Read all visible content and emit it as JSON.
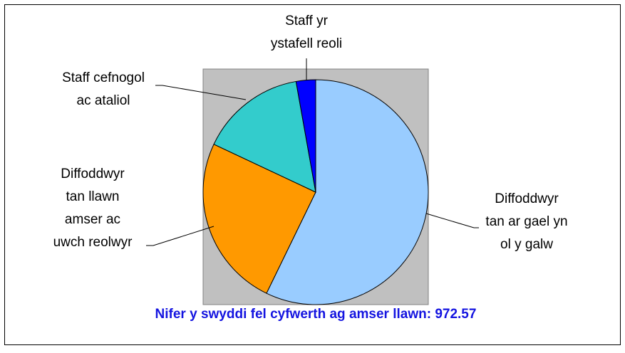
{
  "chart_data": {
    "type": "pie",
    "title": "Nifer y swyddi fel cyfwerth ag amser llawn: 972.57",
    "categories": [
      [
        "Diffoddwyr",
        "tan ar gael yn",
        "ol y galw"
      ],
      [
        "Diffoddwyr",
        "tan llawn",
        "amser ac",
        "uwch reolwyr"
      ],
      [
        "Staff cefnogol",
        "ac ataliol"
      ],
      [
        "Staff yr",
        "ystafell reoli"
      ]
    ],
    "values": [
      57.2,
      24.8,
      15.2,
      2.8
    ],
    "colors": [
      "#99ccff",
      "#ff9900",
      "#33cccc",
      "#0000ff"
    ]
  }
}
